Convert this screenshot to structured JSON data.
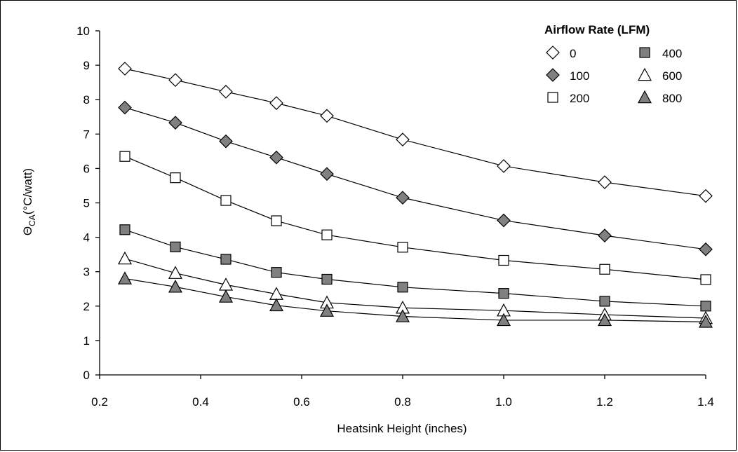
{
  "chart_data": {
    "type": "line",
    "title": "",
    "xlabel": "Heatsink Height (inches)",
    "ylabel_symbol": "Θ",
    "ylabel_subscript": "CA",
    "ylabel_unit": "(°C/watt)",
    "xlim": [
      0.2,
      1.4
    ],
    "ylim": [
      0,
      10
    ],
    "x_ticks": [
      "0.2",
      "0.4",
      "0.6",
      "0.8",
      "1.0",
      "1.2",
      "1.4"
    ],
    "y_ticks": [
      "0",
      "1",
      "2",
      "3",
      "4",
      "5",
      "6",
      "7",
      "8",
      "9",
      "10"
    ],
    "grid": false,
    "legend_title": "Airflow Rate (LFM)",
    "legend_position": "top-right",
    "x": [
      0.25,
      0.35,
      0.45,
      0.55,
      0.65,
      0.8,
      1.0,
      1.2,
      1.4
    ],
    "series": [
      {
        "name": "0",
        "marker": "diamond",
        "fill": "#ffffff",
        "values": [
          8.9,
          8.57,
          8.23,
          7.9,
          7.53,
          6.84,
          6.07,
          5.6,
          5.2
        ]
      },
      {
        "name": "100",
        "marker": "diamond",
        "fill": "#808080",
        "values": [
          7.77,
          7.33,
          6.79,
          6.32,
          5.84,
          5.15,
          4.49,
          4.05,
          3.65
        ]
      },
      {
        "name": "200",
        "marker": "square",
        "fill": "#ffffff",
        "values": [
          6.35,
          5.73,
          5.07,
          4.48,
          4.07,
          3.71,
          3.33,
          3.07,
          2.77
        ]
      },
      {
        "name": "400",
        "marker": "square",
        "fill": "#808080",
        "values": [
          4.22,
          3.72,
          3.36,
          2.98,
          2.78,
          2.55,
          2.37,
          2.14,
          2.0
        ]
      },
      {
        "name": "600",
        "marker": "triangle",
        "fill": "#ffffff",
        "values": [
          3.38,
          2.96,
          2.62,
          2.35,
          2.1,
          1.95,
          1.87,
          1.75,
          1.65
        ]
      },
      {
        "name": "800",
        "marker": "triangle",
        "fill": "#808080",
        "values": [
          2.8,
          2.56,
          2.27,
          2.02,
          1.86,
          1.7,
          1.59,
          1.59,
          1.54
        ]
      }
    ]
  }
}
